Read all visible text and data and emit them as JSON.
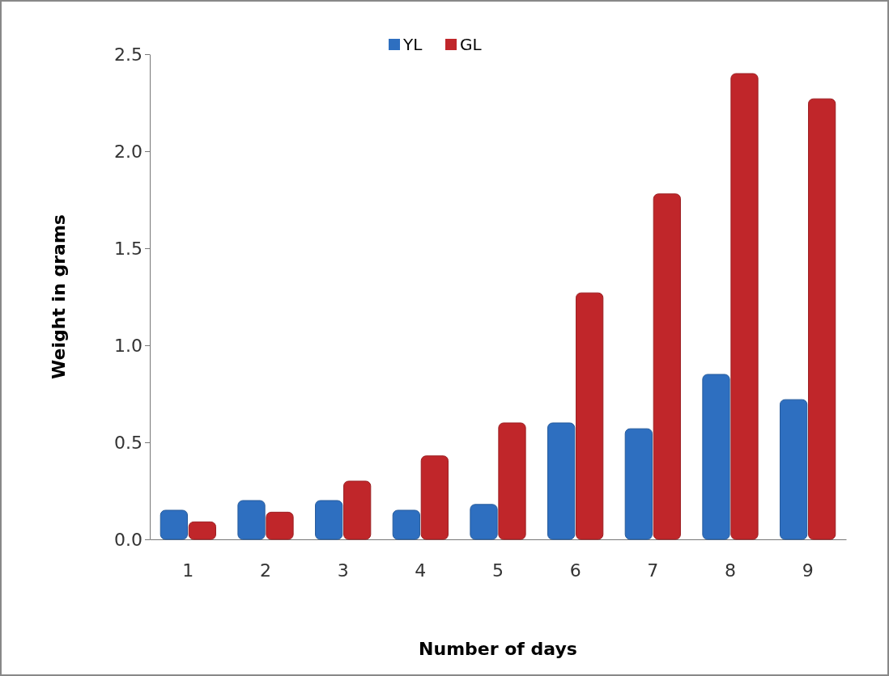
{
  "chart_data": {
    "type": "bar",
    "xlabel": "Number of days",
    "ylabel": "Weight in grams",
    "categories": [
      "1",
      "2",
      "3",
      "4",
      "5",
      "6",
      "7",
      "8",
      "9"
    ],
    "series": [
      {
        "name": "YL",
        "color": "#2e6fc0",
        "values": [
          0.15,
          0.2,
          0.2,
          0.15,
          0.18,
          0.6,
          0.57,
          0.85,
          0.72
        ]
      },
      {
        "name": "GL",
        "color": "#c0262a",
        "values": [
          0.09,
          0.14,
          0.3,
          0.43,
          0.6,
          1.27,
          1.78,
          2.4,
          2.27
        ]
      }
    ],
    "ylim": [
      0,
      2.5
    ],
    "yticks": [
      {
        "value": 0,
        "label": "0.0"
      },
      {
        "value": 0.5,
        "label": "0.5"
      },
      {
        "value": 1,
        "label": "1.0"
      },
      {
        "value": 1.5,
        "label": "1.5"
      },
      {
        "value": 2,
        "label": "2.0"
      },
      {
        "value": 2.5,
        "label": "2.5"
      }
    ],
    "grid": false,
    "legend": "top"
  }
}
